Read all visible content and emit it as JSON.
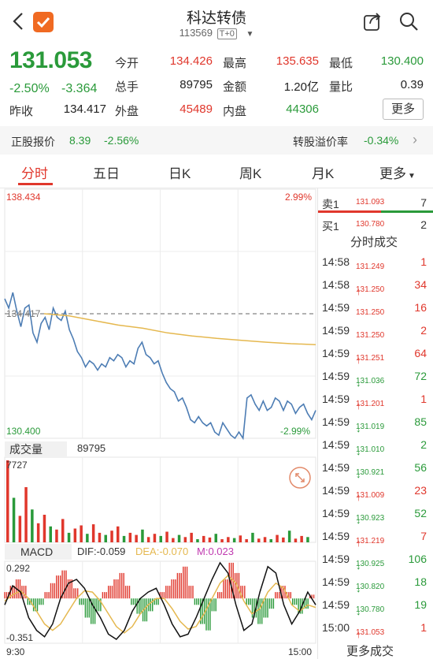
{
  "header": {
    "title": "科达转债",
    "code": "113569",
    "trade_tag": "T+0"
  },
  "quote": {
    "price": "131.053",
    "change_pct": "-2.50%",
    "change": "-3.364",
    "prev_close_label": "昨收",
    "prev_close": "134.417",
    "stats": [
      {
        "label": "今开",
        "value": "134.426",
        "color": "red"
      },
      {
        "label": "最高",
        "value": "135.635",
        "color": "red"
      },
      {
        "label": "最低",
        "value": "130.400",
        "color": "green"
      },
      {
        "label": "总手",
        "value": "89795",
        "color": "black"
      },
      {
        "label": "金额",
        "value": "1.20亿",
        "color": "black"
      },
      {
        "label": "量比",
        "value": "0.39",
        "color": "black"
      },
      {
        "label": "外盘",
        "value": "45489",
        "color": "red"
      },
      {
        "label": "内盘",
        "value": "44306",
        "color": "green"
      }
    ],
    "more_label": "更多"
  },
  "strip": {
    "stock_label": "正股报价",
    "stock_price": "8.39",
    "stock_pct": "-2.56%",
    "premium_label": "转股溢价率",
    "premium_value": "-0.34%"
  },
  "tabs": [
    "分时",
    "五日",
    "日K",
    "周K",
    "月K",
    "更多"
  ],
  "chart_axis": {
    "top_price": "138.434",
    "top_pct": "2.99%",
    "mid_price": "134.417",
    "bottom_price": "130.400",
    "bottom_pct": "-2.99%",
    "vol_label": "成交量",
    "vol_total": "89795",
    "vol_max": "7727",
    "macd_label": "MACD",
    "dif": "DIF:-0.059",
    "dea": "DEA:-0.070",
    "m": "M:0.023",
    "macd_top": "0.292",
    "macd_bottom": "-0.351",
    "time_start": "9:30",
    "time_end": "15:00"
  },
  "order_book": {
    "sell": {
      "label": "卖1",
      "price": "131.093",
      "vol": "7"
    },
    "buy": {
      "label": "买1",
      "price": "130.780",
      "vol": "2"
    }
  },
  "trades_title": "分时成交",
  "trades": [
    {
      "time": "14:58",
      "price": "131.249",
      "dir": "",
      "vol": "1",
      "color": "red"
    },
    {
      "time": "14:58",
      "price": "131.250",
      "dir": "↑",
      "vol": "34",
      "color": "red"
    },
    {
      "time": "14:59",
      "price": "131.250",
      "dir": "",
      "vol": "16",
      "color": "red"
    },
    {
      "time": "14:59",
      "price": "131.250",
      "dir": "",
      "vol": "2",
      "color": "red"
    },
    {
      "time": "14:59",
      "price": "131.251",
      "dir": "↑",
      "vol": "64",
      "color": "red"
    },
    {
      "time": "14:59",
      "price": "131.036",
      "dir": "↓",
      "vol": "72",
      "color": "green"
    },
    {
      "time": "14:59",
      "price": "131.201",
      "dir": "↑",
      "vol": "1",
      "color": "red"
    },
    {
      "time": "14:59",
      "price": "131.019",
      "dir": "↓",
      "vol": "85",
      "color": "green"
    },
    {
      "time": "14:59",
      "price": "131.010",
      "dir": "↓",
      "vol": "2",
      "color": "green"
    },
    {
      "time": "14:59",
      "price": "130.921",
      "dir": "↓",
      "vol": "56",
      "color": "green"
    },
    {
      "time": "14:59",
      "price": "131.009",
      "dir": "↑",
      "vol": "23",
      "color": "red"
    },
    {
      "time": "14:59",
      "price": "130.923",
      "dir": "↓",
      "vol": "52",
      "color": "green"
    },
    {
      "time": "14:59",
      "price": "131.219",
      "dir": "↑",
      "vol": "7",
      "color": "red"
    },
    {
      "time": "14:59",
      "price": "130.925",
      "dir": "↓",
      "vol": "106",
      "color": "green"
    },
    {
      "time": "14:59",
      "price": "130.820",
      "dir": "↓",
      "vol": "18",
      "color": "green"
    },
    {
      "time": "14:59",
      "price": "130.780",
      "dir": "↓",
      "vol": "19",
      "color": "green"
    },
    {
      "time": "15:00",
      "price": "131.053",
      "dir": "↑",
      "vol": "1",
      "color": "red"
    }
  ],
  "trades_more": "更多成交",
  "colors": {
    "red": "#e0372c",
    "green": "#2a9a3a",
    "price_line": "#4d7db4",
    "avg_line": "#e5b84f"
  },
  "chart_data": {
    "type": "line",
    "price_series": [
      134.9,
      134.6,
      135.1,
      134.5,
      134.0,
      134.6,
      134.7,
      133.8,
      133.5,
      134.1,
      134.3,
      133.9,
      134.6,
      134.3,
      134.2,
      134.5,
      133.9,
      133.6,
      133.2,
      133.0,
      132.7,
      132.9,
      132.8,
      132.6,
      132.8,
      132.7,
      133.0,
      132.9,
      133.1,
      133.0,
      132.7,
      132.9,
      132.8,
      133.3,
      133.5,
      133.1,
      133.0,
      132.8,
      132.9,
      132.5,
      132.2,
      132.0,
      131.9,
      131.6,
      131.7,
      131.4,
      131.0,
      130.9,
      131.1,
      130.9,
      130.8,
      130.9,
      130.6,
      130.5,
      130.9,
      130.7,
      130.5,
      130.4,
      130.6,
      130.4,
      131.7,
      131.8,
      131.5,
      131.3,
      131.6,
      131.3,
      131.4,
      131.7,
      131.6,
      131.3,
      131.6,
      131.5,
      131.2,
      131.4,
      131.5,
      131.2,
      131.0,
      131.3
    ],
    "avg_series": [
      134.417,
      134.35,
      134.2,
      134.05,
      133.95,
      133.8,
      133.7,
      133.62,
      133.56,
      133.5,
      133.45,
      133.42
    ],
    "volume_series": [
      7727,
      4200,
      2500,
      5200,
      3100,
      1800,
      2600,
      1500,
      1200,
      2200,
      900,
      1300,
      1600,
      800,
      1700,
      900,
      700,
      1100,
      1500,
      600,
      900,
      700,
      1200,
      500,
      800,
      600,
      1000,
      400,
      700,
      500,
      900,
      300,
      600,
      450,
      800,
      300,
      500,
      400,
      650,
      300,
      900,
      350,
      500,
      300,
      700,
      450,
      1100,
      350,
      600,
      500
    ],
    "macd_bars": [
      0.05,
      0.1,
      0.15,
      0.1,
      -0.05,
      -0.1,
      -0.05,
      0.05,
      0.12,
      0.18,
      0.22,
      0.15,
      0.08,
      -0.05,
      -0.15,
      -0.2,
      -0.1,
      0.05,
      0.1,
      0.15,
      0.2,
      0.1,
      -0.05,
      -0.12,
      -0.18,
      -0.1,
      -0.05,
      0.05,
      0.1,
      0.15,
      0.2,
      0.25,
      0.1,
      -0.05,
      -0.2,
      -0.25,
      -0.1,
      0.05,
      0.15,
      0.28,
      0.2,
      0.1,
      -0.05,
      -0.15,
      -0.2,
      -0.15,
      -0.08,
      0.05,
      0.1,
      0.05,
      -0.05,
      -0.12,
      -0.08,
      0.03
    ],
    "dif_series": [
      -0.05,
      0.1,
      0.05,
      -0.15,
      -0.25,
      -0.3,
      -0.2,
      0.0,
      0.12,
      0.15,
      0.08,
      -0.05,
      -0.15,
      -0.28,
      -0.32,
      -0.25,
      -0.1,
      0.0,
      0.05,
      0.08,
      -0.05,
      -0.2,
      -0.3,
      -0.28,
      -0.15,
      0.0,
      0.15,
      0.28,
      0.2,
      -0.05,
      -0.25,
      -0.2,
      0.05,
      0.25,
      0.2,
      -0.05,
      -0.2,
      -0.1,
      0.05,
      -0.05
    ],
    "dea_series": [
      -0.02,
      0.03,
      0.06,
      0.0,
      -0.1,
      -0.2,
      -0.25,
      -0.2,
      -0.1,
      0.0,
      0.06,
      0.05,
      -0.02,
      -0.12,
      -0.22,
      -0.27,
      -0.22,
      -0.12,
      -0.05,
      0.0,
      0.0,
      -0.08,
      -0.18,
      -0.24,
      -0.22,
      -0.12,
      0.0,
      0.12,
      0.18,
      0.12,
      -0.02,
      -0.12,
      -0.08,
      0.05,
      0.12,
      0.08,
      -0.05,
      -0.1,
      -0.05,
      -0.07
    ],
    "ylim": [
      130.4,
      138.434
    ]
  }
}
